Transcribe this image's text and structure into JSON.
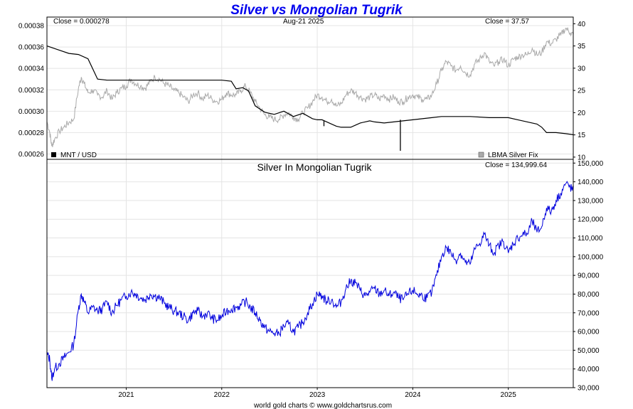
{
  "chart_data": [
    {
      "type": "line",
      "title": "Silver vs Mongolian Tugrik",
      "close_left": "Close = 0.000278",
      "date_label": "Aug-21  2025",
      "close_right": "Close = 37.57",
      "left_axis": {
        "ylim": [
          0.000255,
          0.000388
        ],
        "ticks": [
          "0.00026",
          "0.00028",
          "0.00030",
          "0.00032",
          "0.00034",
          "0.00036",
          "0.00038"
        ],
        "tick_values": [
          0.00026,
          0.00028,
          0.0003,
          0.00032,
          0.00034,
          0.00036,
          0.00038
        ]
      },
      "right_axis": {
        "ylim": [
          9.5,
          41.5
        ],
        "ticks": [
          "10",
          "15",
          "20",
          "25",
          "30",
          "35",
          "40"
        ],
        "tick_values": [
          10,
          15,
          20,
          25,
          30,
          35,
          40
        ]
      },
      "xlim": [
        2020.17,
        2025.68
      ],
      "legend": {
        "mnt_label": "MNT / USD",
        "silver_label": "LBMA Silver Fix",
        "mnt_color": "#000000",
        "silver_color": "#aaaaaa"
      },
      "series": [
        {
          "name": "MNT / USD",
          "color": "#000000",
          "x": [
            2020.17,
            2020.3,
            2020.4,
            2020.5,
            2020.6,
            2020.7,
            2020.8,
            2021.0,
            2021.2,
            2021.5,
            2021.8,
            2022.0,
            2022.1,
            2022.15,
            2022.22,
            2022.28,
            2022.35,
            2022.45,
            2022.55,
            2022.65,
            2022.75,
            2022.85,
            2022.95,
            2023.0,
            2023.05,
            2023.1,
            2023.15,
            2023.2,
            2023.25,
            2023.3,
            2023.35,
            2023.4,
            2023.45,
            2023.5,
            2023.55,
            2023.6,
            2023.7,
            2023.8,
            2023.9,
            2024.0,
            2024.1,
            2024.2,
            2024.3,
            2024.4,
            2024.6,
            2024.8,
            2025.0,
            2025.1,
            2025.2,
            2025.3,
            2025.35,
            2025.4,
            2025.5,
            2025.6,
            2025.68
          ],
          "y": [
            0.000361,
            0.000357,
            0.000354,
            0.000353,
            0.000349,
            0.00033,
            0.000329,
            0.000329,
            0.000329,
            0.000329,
            0.000329,
            0.000329,
            0.000328,
            0.000321,
            0.000322,
            0.000319,
            0.000305,
            0.000299,
            0.000297,
            0.0003,
            0.000295,
            0.000298,
            0.000293,
            0.000292,
            0.000292,
            0.00029,
            0.000288,
            0.000286,
            0.000285,
            0.000285,
            0.000285,
            0.000287,
            0.000289,
            0.00029,
            0.000291,
            0.00029,
            0.000289,
            0.00029,
            0.000291,
            0.000292,
            0.000293,
            0.000294,
            0.000295,
            0.000295,
            0.000295,
            0.000294,
            0.000294,
            0.000292,
            0.00029,
            0.000288,
            0.000285,
            0.00028,
            0.00028,
            0.000279,
            0.000278
          ],
          "spikes": [
            {
              "x": 2023.07,
              "y_from": 0.000291,
              "y_to": 0.000286
            },
            {
              "x": 2023.87,
              "y_from": 0.000292,
              "y_to": 0.000263
            }
          ]
        },
        {
          "name": "LBMA Silver Fix",
          "color": "#aaaaaa",
          "x": [
            2020.17,
            2020.2,
            2020.22,
            2020.25,
            2020.3,
            2020.35,
            2020.4,
            2020.45,
            2020.5,
            2020.53,
            2020.56,
            2020.6,
            2020.65,
            2020.7,
            2020.75,
            2020.8,
            2020.85,
            2020.9,
            2020.95,
            2021.0,
            2021.05,
            2021.1,
            2021.15,
            2021.2,
            2021.25,
            2021.3,
            2021.35,
            2021.4,
            2021.45,
            2021.5,
            2021.55,
            2021.6,
            2021.65,
            2021.7,
            2021.75,
            2021.8,
            2021.85,
            2021.9,
            2021.95,
            2022.0,
            2022.05,
            2022.1,
            2022.15,
            2022.2,
            2022.25,
            2022.3,
            2022.35,
            2022.4,
            2022.45,
            2022.5,
            2022.55,
            2022.6,
            2022.65,
            2022.7,
            2022.75,
            2022.8,
            2022.85,
            2022.9,
            2022.95,
            2023.0,
            2023.05,
            2023.1,
            2023.15,
            2023.2,
            2023.25,
            2023.3,
            2023.35,
            2023.4,
            2023.45,
            2023.5,
            2023.55,
            2023.6,
            2023.65,
            2023.7,
            2023.75,
            2023.8,
            2023.85,
            2023.9,
            2023.95,
            2024.0,
            2024.05,
            2024.1,
            2024.15,
            2024.2,
            2024.25,
            2024.3,
            2024.35,
            2024.4,
            2024.45,
            2024.5,
            2024.55,
            2024.6,
            2024.65,
            2024.7,
            2024.75,
            2024.8,
            2024.85,
            2024.9,
            2024.95,
            2025.0,
            2025.05,
            2025.1,
            2025.15,
            2025.2,
            2025.25,
            2025.3,
            2025.35,
            2025.4,
            2025.45,
            2025.5,
            2025.55,
            2025.6,
            2025.65,
            2025.68
          ],
          "y": [
            18.0,
            15.5,
            12.5,
            14.0,
            15.8,
            16.8,
            17.8,
            18.5,
            25.5,
            28.0,
            26.5,
            24.5,
            25.0,
            24.0,
            23.5,
            25.0,
            23.0,
            24.5,
            25.5,
            26.0,
            27.5,
            26.5,
            26.0,
            25.5,
            27.0,
            28.0,
            27.5,
            26.5,
            26.0,
            25.0,
            24.5,
            23.5,
            22.5,
            24.0,
            24.5,
            23.0,
            24.0,
            23.0,
            22.5,
            23.0,
            24.5,
            24.0,
            24.0,
            25.0,
            26.0,
            24.5,
            22.5,
            21.0,
            19.5,
            19.0,
            18.5,
            18.5,
            19.5,
            20.0,
            19.0,
            18.5,
            20.0,
            21.0,
            22.5,
            24.0,
            23.5,
            22.5,
            23.0,
            21.5,
            22.0,
            24.0,
            25.0,
            24.5,
            23.5,
            23.0,
            23.5,
            24.0,
            23.0,
            24.0,
            23.0,
            23.5,
            22.5,
            22.5,
            23.5,
            24.0,
            23.5,
            23.0,
            23.0,
            24.0,
            26.5,
            29.5,
            31.5,
            30.5,
            29.5,
            30.5,
            29.0,
            28.5,
            31.0,
            32.0,
            33.5,
            31.5,
            30.5,
            31.5,
            32.0,
            30.5,
            32.0,
            32.5,
            33.0,
            33.0,
            34.5,
            33.0,
            33.5,
            36.0,
            35.5,
            36.5,
            37.5,
            39.0,
            38.0,
            37.5
          ]
        }
      ]
    },
    {
      "type": "line",
      "title": "Silver In Mongolian Tugrik",
      "close_right": "Close = 134,999.64",
      "y_axis": {
        "ylim": [
          30000,
          152000
        ],
        "ticks": [
          "30,000",
          "40,000",
          "50,000",
          "60,000",
          "70,000",
          "80,000",
          "90,000",
          "100,000",
          "110,000",
          "120,000",
          "130,000",
          "140,000",
          "150,000"
        ],
        "tick_values": [
          30000,
          40000,
          50000,
          60000,
          70000,
          80000,
          90000,
          100000,
          110000,
          120000,
          130000,
          140000,
          150000
        ]
      },
      "x_axis": {
        "ticks": [
          "2021",
          "2022",
          "2023",
          "2024",
          "2025"
        ],
        "tick_values": [
          2021.0,
          2022.0,
          2023.0,
          2024.0,
          2025.0
        ]
      },
      "xlim": [
        2020.17,
        2025.68
      ],
      "series": [
        {
          "name": "Silver In Mongolian Tugrik",
          "color": "#0000dd",
          "x": [
            2020.17,
            2020.2,
            2020.22,
            2020.25,
            2020.3,
            2020.35,
            2020.4,
            2020.45,
            2020.5,
            2020.53,
            2020.56,
            2020.6,
            2020.65,
            2020.7,
            2020.75,
            2020.8,
            2020.85,
            2020.9,
            2020.95,
            2021.0,
            2021.05,
            2021.1,
            2021.15,
            2021.2,
            2021.25,
            2021.3,
            2021.35,
            2021.4,
            2021.45,
            2021.5,
            2021.55,
            2021.6,
            2021.65,
            2021.7,
            2021.75,
            2021.8,
            2021.85,
            2021.9,
            2021.95,
            2022.0,
            2022.05,
            2022.1,
            2022.15,
            2022.2,
            2022.25,
            2022.3,
            2022.35,
            2022.4,
            2022.45,
            2022.5,
            2022.55,
            2022.6,
            2022.65,
            2022.7,
            2022.75,
            2022.8,
            2022.85,
            2022.9,
            2022.95,
            2023.0,
            2023.05,
            2023.1,
            2023.15,
            2023.2,
            2023.25,
            2023.3,
            2023.35,
            2023.4,
            2023.45,
            2023.5,
            2023.55,
            2023.6,
            2023.65,
            2023.7,
            2023.75,
            2023.8,
            2023.85,
            2023.9,
            2023.95,
            2024.0,
            2024.05,
            2024.1,
            2024.15,
            2024.2,
            2024.25,
            2024.3,
            2024.35,
            2024.4,
            2024.45,
            2024.5,
            2024.55,
            2024.6,
            2024.65,
            2024.7,
            2024.75,
            2024.8,
            2024.85,
            2024.9,
            2024.95,
            2025.0,
            2025.05,
            2025.1,
            2025.15,
            2025.2,
            2025.25,
            2025.3,
            2025.35,
            2025.4,
            2025.45,
            2025.5,
            2025.55,
            2025.6,
            2025.65,
            2025.68
          ],
          "y": [
            48000,
            45000,
            35000,
            40000,
            43000,
            46000,
            49000,
            53000,
            72000,
            80000,
            76000,
            70000,
            73000,
            71000,
            72000,
            76000,
            70000,
            74000,
            77000,
            79000,
            81000,
            80000,
            78000,
            77000,
            80000,
            79000,
            78000,
            75000,
            73000,
            71000,
            70000,
            68000,
            66000,
            70000,
            71000,
            68000,
            70000,
            67000,
            66000,
            68000,
            71000,
            72000,
            73000,
            74000,
            76000,
            73000,
            70000,
            66000,
            62000,
            60000,
            59000,
            59000,
            63000,
            64000,
            60000,
            62000,
            65000,
            70000,
            75000,
            80000,
            79000,
            76000,
            77000,
            73000,
            76000,
            83000,
            87000,
            86000,
            82000,
            79000,
            81000,
            83000,
            80000,
            82000,
            79000,
            81000,
            78000,
            77000,
            80000,
            82000,
            80000,
            79000,
            78000,
            81000,
            90000,
            100000,
            105000,
            102000,
            98000,
            102000,
            97000,
            96000,
            104000,
            107000,
            112000,
            106000,
            102000,
            106000,
            108000,
            102000,
            107000,
            110000,
            112000,
            112000,
            119000,
            113000,
            116000,
            126000,
            124000,
            130000,
            134000,
            139000,
            137000,
            135000
          ]
        }
      ]
    }
  ],
  "footer": {
    "credit": "world gold charts © www.goldchartsrus.com"
  }
}
